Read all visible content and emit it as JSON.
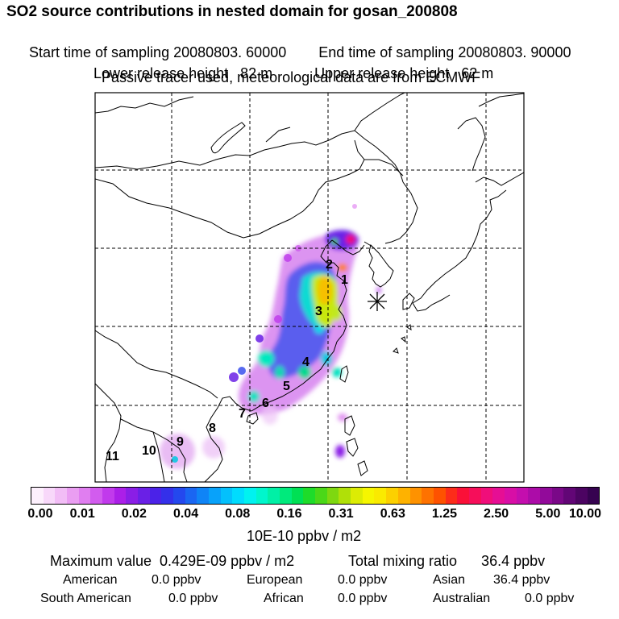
{
  "header": {
    "title": "SO2 source contributions in nested domain for gosan_200808",
    "start_time": "Start time of sampling 20080803. 60000",
    "end_time": "End time of sampling 20080803. 90000",
    "lower_release": "Lower release height   82 m",
    "upper_release": "Upper release height   62 m",
    "tracer_note": "Passive tracer used, meteorological data are from ECMWF"
  },
  "map": {
    "receptor_marker": "gosan-receptor",
    "source_labels": [
      {
        "id": "1",
        "text": "1"
      },
      {
        "id": "2",
        "text": "2"
      },
      {
        "id": "3",
        "text": "3"
      },
      {
        "id": "4",
        "text": "4"
      },
      {
        "id": "5",
        "text": "5"
      },
      {
        "id": "6",
        "text": "6"
      },
      {
        "id": "7",
        "text": "7"
      },
      {
        "id": "8",
        "text": "8"
      },
      {
        "id": "9",
        "text": "9"
      },
      {
        "id": "10",
        "text": "10"
      },
      {
        "id": "11",
        "text": "11"
      }
    ]
  },
  "colorbar": {
    "ticks": [
      "0.00",
      "0.01",
      "0.02",
      "0.04",
      "0.08",
      "0.16",
      "0.31",
      "0.63",
      "1.25",
      "2.50",
      "5.00",
      "10.00"
    ],
    "colors": [
      "#fdf0fd",
      "#f8d8fa",
      "#f2bdf6",
      "#ea9ef2",
      "#e07ef0",
      "#d25cee",
      "#c13aec",
      "#ab1fe8",
      "#8a1ee6",
      "#6a20e6",
      "#4b22e8",
      "#3430ea",
      "#2448ee",
      "#1a66f2",
      "#0f84f6",
      "#08a2fa",
      "#04c0fc",
      "#00dcfe",
      "#00f2f0",
      "#00f6cc",
      "#00f0a6",
      "#00ea7c",
      "#00e054",
      "#1edc2a",
      "#4ad818",
      "#7ed810",
      "#b0e008",
      "#dcec04",
      "#f6f600",
      "#faea00",
      "#fcd000",
      "#feb200",
      "#fe9200",
      "#fe7200",
      "#fe5200",
      "#fc2c1a",
      "#fa1038",
      "#f60e5a",
      "#f00e7a",
      "#e60e94",
      "#d80ea6",
      "#c40eae",
      "#ac0ca8",
      "#920a9a",
      "#7a0888",
      "#620676",
      "#4c0462",
      "#360350"
    ],
    "units": "10E-10 ppbv / m2"
  },
  "summary": {
    "max_value": "Maximum value  0.429E-09 ppbv / m2",
    "total_mixing": "Total mixing ratio      36.4 ppbv",
    "regions": [
      {
        "name": "American",
        "value": "0.0 ppbv"
      },
      {
        "name": "European",
        "value": "0.0 ppbv"
      },
      {
        "name": "Asian",
        "value": "36.4 ppbv"
      },
      {
        "name": "South American",
        "value": "0.0 ppbv"
      },
      {
        "name": "African",
        "value": "0.0 ppbv"
      },
      {
        "name": "Australian",
        "value": "0.0 ppbv"
      }
    ]
  }
}
